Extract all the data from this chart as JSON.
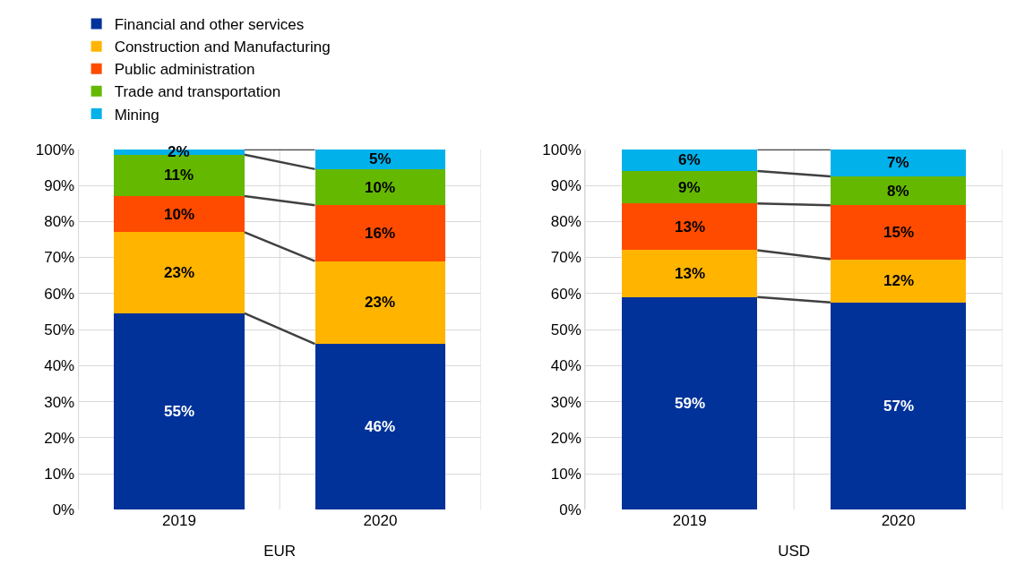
{
  "chart_data": [
    {
      "type": "bar",
      "stacked": true,
      "xlabel": "EUR",
      "categories": [
        "2019",
        "2020"
      ],
      "ylim": [
        0,
        100
      ],
      "yticks": [
        {
          "value": 0,
          "label": "0%"
        },
        {
          "value": 10,
          "label": "10%"
        },
        {
          "value": 20,
          "label": "20%"
        },
        {
          "value": 30,
          "label": "30%"
        },
        {
          "value": 40,
          "label": "40%"
        },
        {
          "value": 50,
          "label": "50%"
        },
        {
          "value": 60,
          "label": "60%"
        },
        {
          "value": 70,
          "label": "70%"
        },
        {
          "value": 80,
          "label": "80%"
        },
        {
          "value": 90,
          "label": "90%"
        },
        {
          "value": 100,
          "label": "100%"
        }
      ],
      "grid": true,
      "legend": "top left",
      "series": [
        {
          "name": "Financial and other services",
          "color": "#003299",
          "values": [
            54.5,
            46
          ],
          "value_labels": [
            "55%",
            "46%"
          ]
        },
        {
          "name": "Construction and Manufacturing",
          "color": "#ffb400",
          "values": [
            22.5,
            23
          ],
          "value_labels": [
            "23%",
            "23%"
          ]
        },
        {
          "name": "Public administration",
          "color": "#ff4b00",
          "values": [
            10,
            15.5
          ],
          "value_labels": [
            "10%",
            "16%"
          ]
        },
        {
          "name": "Trade and transportation",
          "color": "#65b800",
          "values": [
            11.5,
            10
          ],
          "value_labels": [
            "11%",
            "10%"
          ]
        },
        {
          "name": "Mining",
          "color": "#00b1ea",
          "values": [
            1.5,
            5.5
          ],
          "value_labels": [
            "2%",
            "5%"
          ]
        }
      ]
    },
    {
      "type": "bar",
      "stacked": true,
      "xlabel": "USD",
      "categories": [
        "2019",
        "2020"
      ],
      "ylim": [
        0,
        100
      ],
      "yticks": [
        {
          "value": 0,
          "label": "0%"
        },
        {
          "value": 10,
          "label": "10%"
        },
        {
          "value": 20,
          "label": "20%"
        },
        {
          "value": 30,
          "label": "30%"
        },
        {
          "value": 40,
          "label": "40%"
        },
        {
          "value": 50,
          "label": "50%"
        },
        {
          "value": 60,
          "label": "60%"
        },
        {
          "value": 70,
          "label": "70%"
        },
        {
          "value": 80,
          "label": "80%"
        },
        {
          "value": 90,
          "label": "90%"
        },
        {
          "value": 100,
          "label": "100%"
        }
      ],
      "grid": true,
      "series": [
        {
          "color": "#003299",
          "values": [
            59,
            57.5
          ],
          "value_labels": [
            "59%",
            "57%"
          ]
        },
        {
          "color": "#ffb400",
          "values": [
            13,
            12
          ],
          "value_labels": [
            "13%",
            "12%"
          ]
        },
        {
          "color": "#ff4b00",
          "values": [
            13,
            15
          ],
          "value_labels": [
            "13%",
            "15%"
          ]
        },
        {
          "color": "#65b800",
          "values": [
            9,
            8
          ],
          "value_labels": [
            "9%",
            "8%"
          ]
        },
        {
          "color": "#00b1ea",
          "values": [
            6,
            7.5
          ],
          "value_labels": [
            "6%",
            "7%"
          ]
        }
      ]
    }
  ]
}
